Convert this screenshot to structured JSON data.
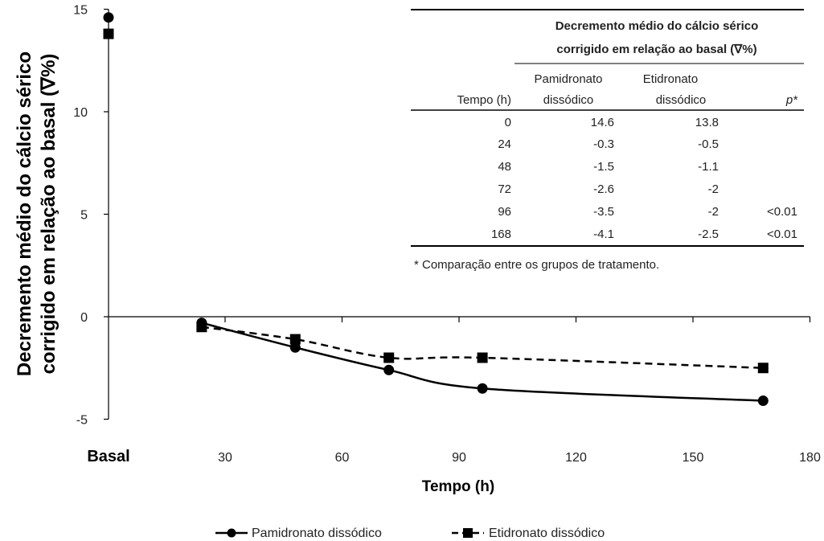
{
  "chart_data": {
    "type": "line",
    "xlabel": "Tempo (h)",
    "ylabel_line1": "Decremento médio do cálcio sérico",
    "ylabel_line2": "corrigido em relação ao basal (∇%)",
    "x_tick_labels": [
      "30",
      "60",
      "90",
      "120",
      "150",
      "180"
    ],
    "x_ticks": [
      30,
      60,
      90,
      120,
      150,
      180
    ],
    "baseline_label": "Basal",
    "y_ticks": [
      -5,
      0,
      5,
      10,
      15
    ],
    "y_tick_labels": [
      "-5",
      "0",
      "5",
      "10",
      "15"
    ],
    "ylim": [
      -5,
      15
    ],
    "xlim": [
      0,
      180
    ],
    "grid": false,
    "legend_position": "bottom",
    "series": [
      {
        "name": "Pamidronato dissódico",
        "marker": "circle",
        "line_style": "solid",
        "color": "#000000",
        "basal_value": 14.6,
        "x": [
          24,
          48,
          72,
          96,
          168
        ],
        "y": [
          -0.3,
          -1.5,
          -2.6,
          -3.5,
          -4.1
        ]
      },
      {
        "name": "Etidronato dissódico",
        "marker": "square",
        "line_style": "dashed",
        "color": "#000000",
        "basal_value": 13.8,
        "x": [
          24,
          48,
          72,
          96,
          168
        ],
        "y": [
          -0.5,
          -1.1,
          -2,
          -2,
          -2.5
        ]
      }
    ],
    "inset_table": {
      "title_line1": "Decremento médio do cálcio sérico",
      "title_line2": "corrigido em relação ao basal (∇%)",
      "col_time": "Tempo (h)",
      "col_a_line1": "Pamidronato",
      "col_a_line2": "dissódico",
      "col_b_line1": "Etidronato",
      "col_b_line2": "dissódico",
      "col_p": "p*",
      "rows": [
        [
          "0",
          "14.6",
          "13.8",
          ""
        ],
        [
          "24",
          "-0.3",
          "-0.5",
          ""
        ],
        [
          "48",
          "-1.5",
          "-1.1",
          ""
        ],
        [
          "72",
          "-2.6",
          "-2",
          ""
        ],
        [
          "96",
          "-3.5",
          "-2",
          "<0.01"
        ],
        [
          "168",
          "-4.1",
          "-2.5",
          "<0.01"
        ]
      ],
      "footnote": "* Comparação entre os grupos de tratamento."
    }
  }
}
